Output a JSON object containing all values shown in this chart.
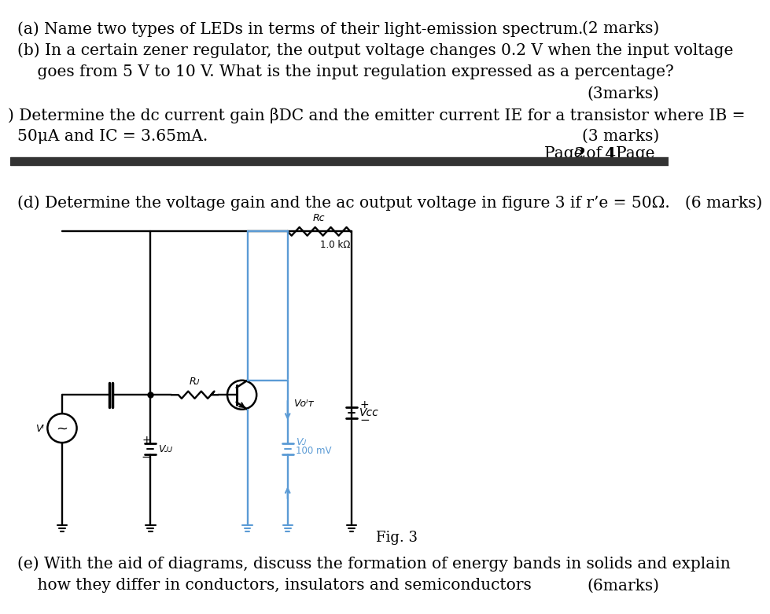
{
  "bg_color": "#ffffff",
  "text_color": "#000000",
  "line_color": "#000000",
  "circuit_color": "#5b9bd5",
  "separator_color": "#333333",
  "texts": {
    "line1": "(a) Name two types of LEDs in terms of their light-emission spectrum.",
    "line1_right": "(2 marks)",
    "line2": "(b) In a certain zener regulator, the output voltage changes 0.2 V when the input voltage",
    "line3": "    goes from 5 V to 10 V. What is the input regulation expressed as a percentage?",
    "line4": "(3marks)",
    "line5": ") Determine the dc current gain βDC and the emitter current IE for a transistor where IB =",
    "line6": "50μA and IC = 3.65mA.",
    "line6_right": "(3 marks)",
    "part_d": "(d) Determine the voltage gain and the ac output voltage in figure 3 if r’e = 50Ω.   (6 marks)",
    "rc_label": "Rᴄ",
    "rc_value": "1.0 kΩ",
    "rb_label": "Rᴊ",
    "vb_label": "Vᴊ",
    "vb_value": "100 mV",
    "vout_label": "Vᴏᴵᴛ",
    "vcc_label": "Vᴄᴄ",
    "vi_label": "Vᴵ",
    "vbb_label": "Vᴊᴊ",
    "fig_label": "Fig. 3",
    "part_e": "(e) With the aid of diagrams, discuss the formation of energy bands in solids and explain",
    "part_e2": "    how they differ in conductors, insulators and semiconductors",
    "part_e2_right": "(6marks)"
  }
}
